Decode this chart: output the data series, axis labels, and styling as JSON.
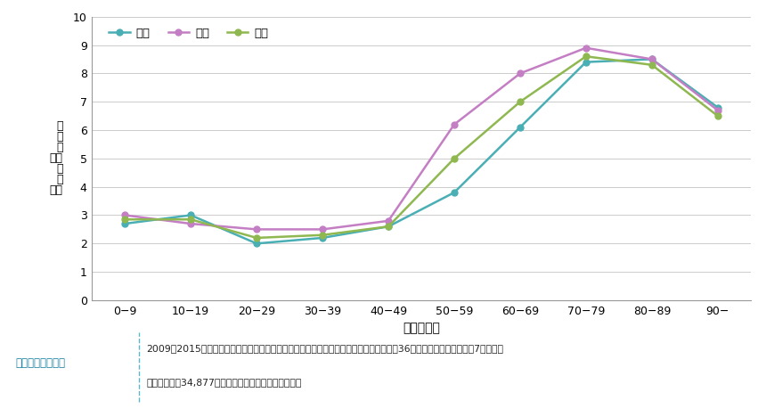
{
  "categories": [
    "0−9",
    "10−19",
    "20−29",
    "30−39",
    "40−49",
    "50−59",
    "60−69",
    "70−79",
    "80−89",
    "90−"
  ],
  "male": [
    2.7,
    3.0,
    2.0,
    2.2,
    2.6,
    3.8,
    6.1,
    8.4,
    8.5,
    6.8
  ],
  "female": [
    3.0,
    2.7,
    2.5,
    2.5,
    2.8,
    6.2,
    8.0,
    8.9,
    8.5,
    6.7
  ],
  "total": [
    2.85,
    2.85,
    2.2,
    2.3,
    2.6,
    5.0,
    7.0,
    8.6,
    8.3,
    6.5
  ],
  "male_color": "#4aafb5",
  "female_color": "#c47fc4",
  "total_color": "#8fb850",
  "ylabel": "発症率（千人・年）",
  "ylabel_display": "発\n症\n率\n（千\n人\n・\n年）",
  "xlabel": "年齢（歳）",
  "ylim": [
    0,
    10
  ],
  "yticks": [
    0,
    1,
    2,
    3,
    4,
    5,
    6,
    7,
    8,
    9,
    10
  ],
  "legend_male": "男性",
  "legend_female": "女性",
  "legend_total": "合計",
  "note_label": "調査の対象と方法",
  "note_line1": "2009～2015年に帯状疱疹を発症し、宮崎県皮膚科医会に属する医療機関（皮膚科診療所36施設、総合病院の皮膚科7施設）を",
  "note_line2": "受診した患者34,877例の性別および年齢を調査した。",
  "bg_color": "#ffffff",
  "note_bg": "#dff0f7",
  "note_border_color": "#5bb8cc",
  "note_label_color": "#1a7fa0",
  "grid_color": "#cccccc",
  "spine_color": "#999999"
}
